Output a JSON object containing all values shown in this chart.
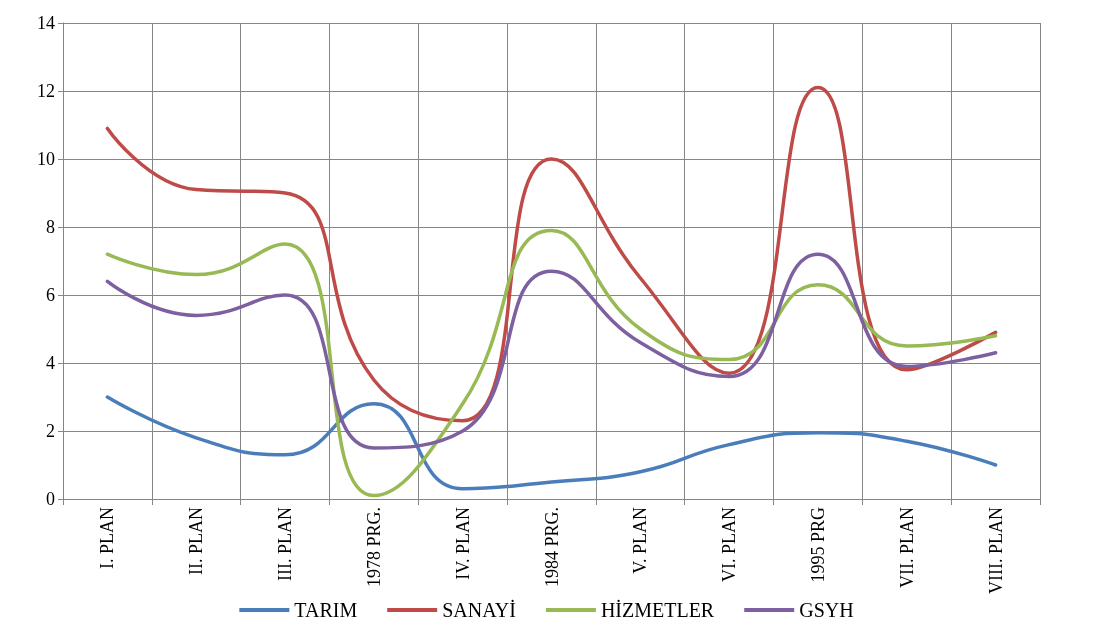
{
  "chart_data": {
    "type": "line",
    "categories": [
      "I. PLAN",
      "II. PLAN",
      "III. PLAN",
      "1978 PRG.",
      "IV. PLAN",
      "1984 PRG.",
      "V. PLAN",
      "VI. PLAN",
      "1995 PRG",
      "VII. PLAN",
      "VIII. PLAN"
    ],
    "series": [
      {
        "name": "TARIM",
        "color": "#4a7ebb",
        "values": [
          3.0,
          1.8,
          1.3,
          2.8,
          0.3,
          0.5,
          0.8,
          1.6,
          1.95,
          1.7,
          1.0
        ]
      },
      {
        "name": "SANAYİ",
        "color": "#be4b48",
        "values": [
          10.9,
          9.1,
          9.0,
          3.5,
          2.3,
          10.0,
          6.5,
          3.7,
          12.1,
          3.8,
          4.9
        ]
      },
      {
        "name": "HİZMETLER",
        "color": "#98b954",
        "values": [
          7.2,
          6.6,
          7.5,
          0.1,
          2.8,
          7.9,
          5.0,
          4.1,
          6.3,
          4.5,
          4.8
        ]
      },
      {
        "name": "GSYH",
        "color": "#7d60a0",
        "values": [
          6.4,
          5.4,
          6.0,
          1.5,
          2.0,
          6.7,
          4.6,
          3.6,
          7.2,
          3.9,
          4.3
        ]
      }
    ],
    "ylim": [
      0,
      14
    ],
    "yticks": [
      0,
      2,
      4,
      6,
      8,
      10,
      12,
      14
    ],
    "grid": true,
    "legend": "bottom",
    "marker": "none",
    "line_style": "solid"
  }
}
